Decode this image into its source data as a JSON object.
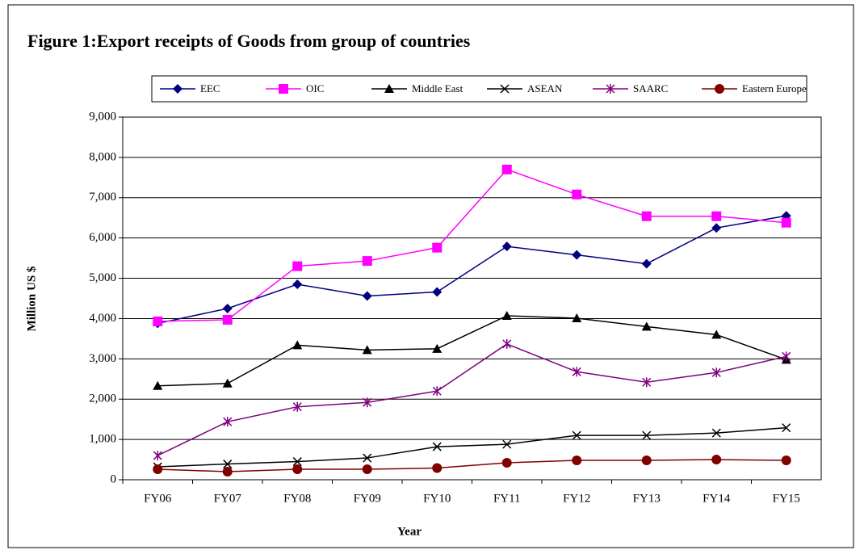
{
  "chart_data": {
    "type": "line",
    "title": "Figure 1:Export receipts of Goods from group of  countries",
    "x_label": "Year",
    "y_label": "Million US $",
    "categories": [
      "FY06",
      "FY07",
      "FY08",
      "FY09",
      "FY10",
      "FY11",
      "FY12",
      "FY13",
      "FY14",
      "FY15"
    ],
    "series": [
      {
        "name": "EEC",
        "color": "#000080",
        "marker": "diamond",
        "values": [
          3880,
          4250,
          4850,
          4560,
          4660,
          5790,
          5580,
          5360,
          6250,
          6550
        ]
      },
      {
        "name": "OIC",
        "color": "#ff00ff",
        "marker": "square",
        "values": [
          3930,
          3970,
          5300,
          5430,
          5760,
          7700,
          7080,
          6540,
          6540,
          6380
        ]
      },
      {
        "name": "Middle East",
        "color": "#000000",
        "marker": "triangle",
        "values": [
          2330,
          2390,
          3340,
          3220,
          3250,
          4070,
          4010,
          3800,
          3600,
          2980
        ]
      },
      {
        "name": "ASEAN",
        "color": "#000000",
        "marker": "x",
        "values": [
          320,
          390,
          450,
          540,
          820,
          880,
          1100,
          1100,
          1160,
          1290
        ]
      },
      {
        "name": "SAARC",
        "color": "#800080",
        "marker": "asterisk",
        "values": [
          600,
          1440,
          1810,
          1920,
          2200,
          3370,
          2680,
          2420,
          2660,
          3060
        ]
      },
      {
        "name": "Eastern Europe",
        "color": "#800000",
        "marker": "circle",
        "values": [
          260,
          200,
          260,
          260,
          290,
          420,
          480,
          480,
          500,
          480
        ]
      }
    ],
    "ylim": [
      0,
      9000
    ],
    "yticks": [
      0,
      {
        "value": 1000,
        "label": "1,000"
      },
      {
        "value": 2000,
        "label": "2,000"
      },
      {
        "value": 3000,
        "label": "3,000"
      },
      {
        "value": 4000,
        "label": "4,000"
      },
      {
        "value": 5000,
        "label": "5,000"
      },
      {
        "value": 6000,
        "label": "6,000"
      },
      {
        "value": 7000,
        "label": "7,000"
      },
      {
        "value": 8000,
        "label": "8,000"
      },
      {
        "value": 9000,
        "label": "9,000"
      }
    ],
    "grid": true,
    "legend": "top"
  }
}
